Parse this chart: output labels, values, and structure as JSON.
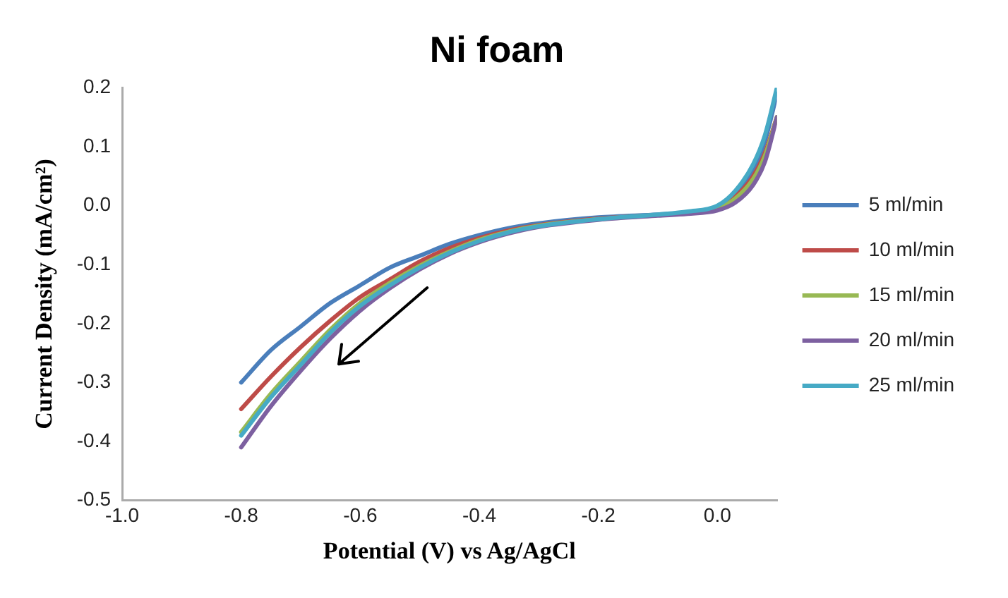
{
  "chart_data": {
    "type": "line",
    "title": "Ni foam",
    "xlabel": "Potential (V) vs Ag/AgCl",
    "ylabel": "Current Density (mA/cm²)",
    "x": [
      -0.8,
      -0.75,
      -0.7,
      -0.65,
      -0.6,
      -0.55,
      -0.5,
      -0.45,
      -0.4,
      -0.35,
      -0.3,
      -0.2,
      -0.1,
      -0.05,
      0,
      0.03,
      0.06,
      0.08,
      0.1
    ],
    "series": [
      {
        "name": "5 ml/min",
        "color": "#4a7ebb",
        "values": [
          -0.3,
          -0.245,
          -0.205,
          -0.165,
          -0.135,
          -0.105,
          -0.085,
          -0.065,
          -0.05,
          -0.038,
          -0.03,
          -0.02,
          -0.015,
          -0.012,
          -0.002,
          0.02,
          0.06,
          0.11,
          0.19
        ]
      },
      {
        "name": "10 ml/min",
        "color": "#be4b48",
        "values": [
          -0.345,
          -0.29,
          -0.24,
          -0.195,
          -0.155,
          -0.125,
          -0.095,
          -0.072,
          -0.055,
          -0.042,
          -0.033,
          -0.022,
          -0.016,
          -0.013,
          -0.004,
          0.015,
          0.05,
          0.09,
          0.15
        ]
      },
      {
        "name": "15 ml/min",
        "color": "#98b954",
        "values": [
          -0.384,
          -0.319,
          -0.264,
          -0.21,
          -0.165,
          -0.131,
          -0.102,
          -0.078,
          -0.058,
          -0.044,
          -0.034,
          -0.023,
          -0.016,
          -0.013,
          -0.005,
          0.012,
          0.045,
          0.085,
          0.15
        ]
      },
      {
        "name": "20 ml/min",
        "color": "#7d60a0",
        "values": [
          -0.41,
          -0.34,
          -0.28,
          -0.225,
          -0.178,
          -0.14,
          -0.108,
          -0.082,
          -0.062,
          -0.047,
          -0.036,
          -0.024,
          -0.017,
          -0.014,
          -0.008,
          0.005,
          0.035,
          0.075,
          0.15
        ]
      },
      {
        "name": "25 ml/min",
        "color": "#46aac5",
        "values": [
          -0.39,
          -0.325,
          -0.27,
          -0.215,
          -0.17,
          -0.135,
          -0.105,
          -0.08,
          -0.06,
          -0.045,
          -0.035,
          -0.023,
          -0.015,
          -0.01,
          0.0,
          0.025,
          0.07,
          0.12,
          0.2
        ]
      }
    ],
    "xlim": [
      -1.0,
      0.1
    ],
    "xticks": [
      {
        "value": -1.0,
        "label": "-1.0"
      },
      -0.8,
      -0.6,
      -0.4,
      -0.2,
      {
        "value": 0,
        "label": "0.0"
      }
    ],
    "ylim": [
      -0.5,
      0.2
    ],
    "yticks": [
      -0.5,
      -0.4,
      -0.3,
      -0.2,
      -0.1,
      {
        "value": 0,
        "label": "0.0"
      },
      0.1,
      0.2
    ],
    "legend": "right",
    "grid": false,
    "marker": "none",
    "line_style": "solid"
  }
}
